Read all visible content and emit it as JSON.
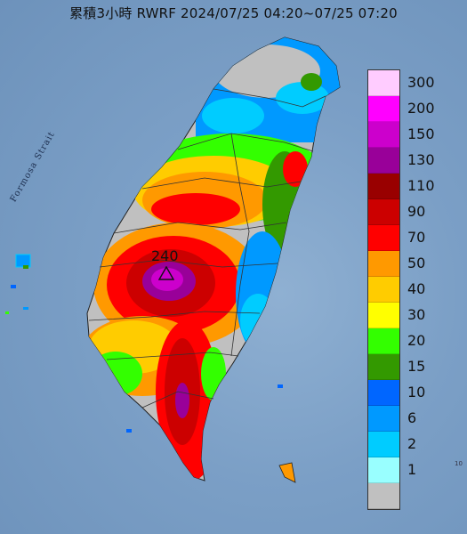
{
  "title": "累積3小時 RWRF 2024/07/25 04:20~07/25 07:20",
  "sea_label": "Formosa Strait",
  "peak": {
    "value": "240",
    "marker": "triangle-marker"
  },
  "legend": {
    "steps": [
      {
        "label": "300",
        "color": "#ffccff"
      },
      {
        "label": "200",
        "color": "#ff00ff"
      },
      {
        "label": "150",
        "color": "#cc00cc"
      },
      {
        "label": "130",
        "color": "#990099"
      },
      {
        "label": "110",
        "color": "#990000"
      },
      {
        "label": "90",
        "color": "#cc0000"
      },
      {
        "label": "70",
        "color": "#ff0000"
      },
      {
        "label": "50",
        "color": "#ff9900"
      },
      {
        "label": "40",
        "color": "#ffcc00"
      },
      {
        "label": "30",
        "color": "#ffff00"
      },
      {
        "label": "20",
        "color": "#33ff00"
      },
      {
        "label": "15",
        "color": "#339900"
      },
      {
        "label": "10",
        "color": "#0066ff"
      },
      {
        "label": "6",
        "color": "#0099ff"
      },
      {
        "label": "2",
        "color": "#00ccff"
      },
      {
        "label": "1",
        "color": "#99ffff"
      },
      {
        "label": "",
        "color": "#c0c0c0"
      }
    ]
  },
  "corner_label": "10"
}
